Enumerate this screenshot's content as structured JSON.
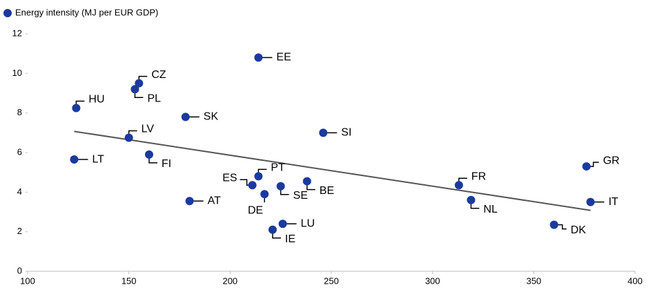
{
  "chart_data": {
    "type": "scatter",
    "series": [
      {
        "name": "Energy intensity (MJ per EUR GDP)",
        "color": "#1b3a9e",
        "labels": [
          "HU",
          "LT",
          "CZ",
          "PL",
          "LV",
          "FI",
          "SK",
          "AT",
          "ES",
          "PT",
          "DE",
          "SE",
          "BE",
          "LU",
          "IE",
          "EE",
          "SI",
          "FR",
          "NL",
          "DK",
          "GR",
          "IT"
        ],
        "x": [
          124,
          123,
          155,
          153,
          150,
          160,
          178,
          180,
          211,
          214,
          217,
          225,
          238,
          226,
          221,
          214,
          246,
          313,
          319,
          360,
          376,
          378
        ],
        "y": [
          8.25,
          5.65,
          9.5,
          9.2,
          6.75,
          5.9,
          7.8,
          3.55,
          4.35,
          4.8,
          3.9,
          4.3,
          4.55,
          2.4,
          2.1,
          10.8,
          7.0,
          4.35,
          3.6,
          2.35,
          5.3,
          3.5
        ]
      }
    ],
    "trend": {
      "x": [
        123,
        378
      ],
      "y": [
        7.07,
        3.08
      ],
      "color": "#555555"
    },
    "xlim": [
      100,
      400
    ],
    "xticks": [
      100,
      150,
      200,
      250,
      300,
      350,
      400
    ],
    "ylim": [
      0,
      12
    ],
    "yticks": [
      0,
      2,
      4,
      6,
      8,
      10,
      12
    ]
  }
}
